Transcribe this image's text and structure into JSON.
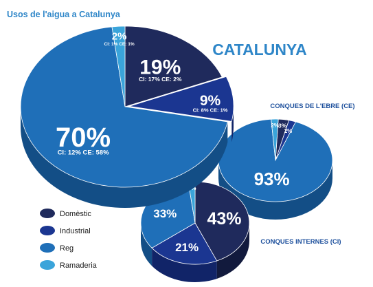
{
  "colors": {
    "title": "#2e86c8",
    "label_blue": "#1c4f9c",
    "domestic": "#1f2a5c",
    "industrial": "#1b3691",
    "reg": "#1f6fb8",
    "ramaderia": "#3aa4da",
    "domestic_dark": "#121a3d",
    "industrial_dark": "#112468",
    "reg_dark": "#134e86",
    "ramaderia_dark": "#2382b2"
  },
  "chart_data": {
    "type": "pie",
    "title": "Usos de l'aigua a Catalunya",
    "legend": {
      "position": "bottom-left",
      "entries": [
        "Domèstic",
        "Industrial",
        "Reg",
        "Ramaderia"
      ]
    },
    "charts": [
      {
        "name": "CATALUNYA",
        "categories": [
          "Domèstic",
          "Industrial",
          "Reg",
          "Ramaderia"
        ],
        "values": [
          19,
          9,
          70,
          2
        ],
        "labels": [
          "19%",
          "9%",
          "70%",
          "2%"
        ],
        "sublabels": [
          "CI: 17%  CE: 2%",
          "CI: 8%  CE: 1%",
          "CI: 12%  CE: 58%",
          "CI: 1%  CE: 1%"
        ]
      },
      {
        "name": "CONQUES DE L'EBRE (CE)",
        "categories": [
          "Domèstic",
          "Industrial",
          "Reg",
          "Ramaderia"
        ],
        "values": [
          3,
          2,
          93,
          2
        ],
        "labels": [
          "3%",
          "2%",
          "93%",
          "2%"
        ]
      },
      {
        "name": "CONQUES INTERNES (CI)",
        "categories": [
          "Domèstic",
          "Industrial",
          "Reg",
          "Ramaderia"
        ],
        "values": [
          43,
          21,
          33,
          2
        ],
        "labels": [
          "43%",
          "21%",
          "33%",
          "2%"
        ]
      }
    ]
  }
}
